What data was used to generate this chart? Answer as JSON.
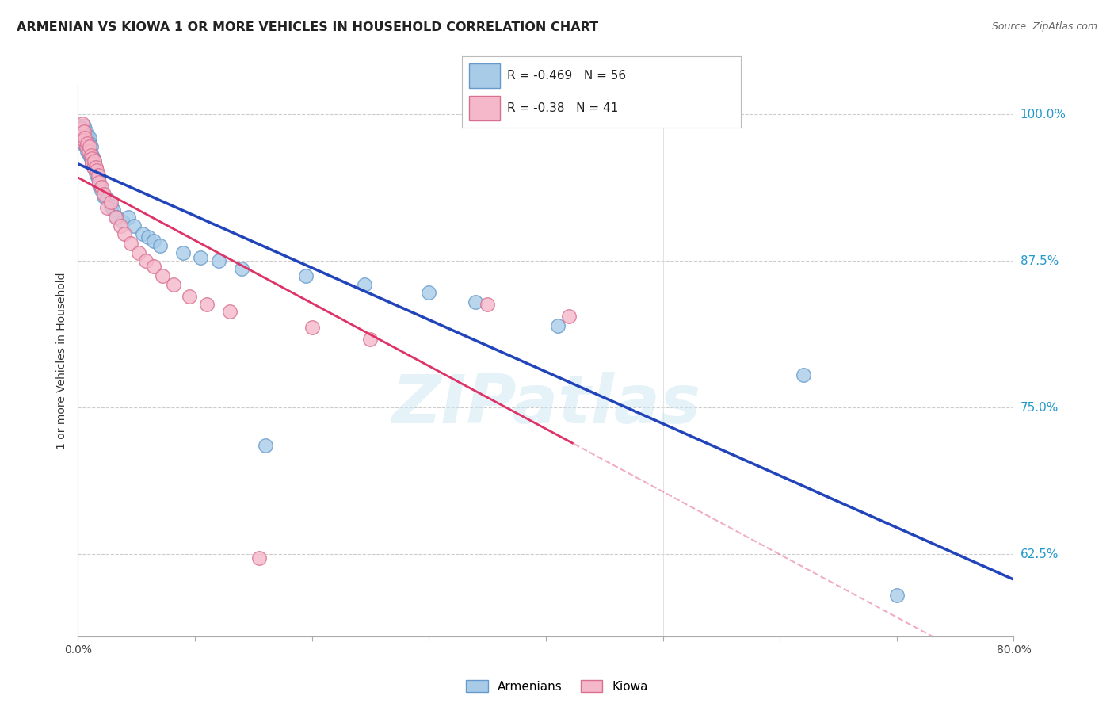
{
  "title": "ARMENIAN VS KIOWA 1 OR MORE VEHICLES IN HOUSEHOLD CORRELATION CHART",
  "source": "Source: ZipAtlas.com",
  "ylabel": "1 or more Vehicles in Household",
  "xlim": [
    0.0,
    0.8
  ],
  "ylim": [
    0.555,
    1.025
  ],
  "yticks": [
    0.625,
    0.75,
    0.875,
    1.0
  ],
  "ytick_labels": [
    "62.5%",
    "75.0%",
    "87.5%",
    "100.0%"
  ],
  "xticks": [
    0.0,
    0.1,
    0.2,
    0.3,
    0.4,
    0.5,
    0.6,
    0.7,
    0.8
  ],
  "xtick_labels": [
    "0.0%",
    "",
    "",
    "",
    "",
    "",
    "",
    "",
    "80.0%"
  ],
  "armenian_color": "#a8cce8",
  "armenian_edge": "#6699cc",
  "kiowa_color": "#f5b8ca",
  "kiowa_edge": "#d87090",
  "trendline_blue": "#2244bb",
  "trendline_pink": "#dd3366",
  "watermark": "ZIPatlas",
  "background_color": "#ffffff",
  "armenian_R": -0.469,
  "armenian_N": 56,
  "kiowa_R": -0.38,
  "kiowa_N": 41,
  "armenian_x": [
    0.002,
    0.003,
    0.004,
    0.004,
    0.005,
    0.005,
    0.005,
    0.006,
    0.006,
    0.007,
    0.007,
    0.007,
    0.008,
    0.008,
    0.008,
    0.009,
    0.009,
    0.01,
    0.01,
    0.01,
    0.011,
    0.011,
    0.012,
    0.012,
    0.013,
    0.013,
    0.014,
    0.015,
    0.016,
    0.017,
    0.018,
    0.02,
    0.022,
    0.025,
    0.028,
    0.03,
    0.033,
    0.038,
    0.043,
    0.048,
    0.055,
    0.06,
    0.065,
    0.07,
    0.09,
    0.105,
    0.12,
    0.14,
    0.16,
    0.195,
    0.245,
    0.3,
    0.34,
    0.41,
    0.62,
    0.7
  ],
  "armenian_y": [
    0.99,
    0.985,
    0.985,
    0.975,
    0.99,
    0.98,
    0.975,
    0.985,
    0.978,
    0.985,
    0.98,
    0.972,
    0.982,
    0.975,
    0.968,
    0.978,
    0.97,
    0.98,
    0.975,
    0.965,
    0.972,
    0.962,
    0.965,
    0.958,
    0.962,
    0.955,
    0.96,
    0.95,
    0.948,
    0.945,
    0.94,
    0.935,
    0.93,
    0.928,
    0.922,
    0.918,
    0.912,
    0.908,
    0.912,
    0.905,
    0.898,
    0.895,
    0.892,
    0.888,
    0.882,
    0.878,
    0.875,
    0.868,
    0.718,
    0.862,
    0.855,
    0.848,
    0.84,
    0.82,
    0.778,
    0.59
  ],
  "kiowa_x": [
    0.001,
    0.002,
    0.003,
    0.004,
    0.005,
    0.005,
    0.006,
    0.007,
    0.008,
    0.009,
    0.01,
    0.011,
    0.012,
    0.012,
    0.013,
    0.014,
    0.015,
    0.016,
    0.017,
    0.018,
    0.02,
    0.022,
    0.025,
    0.028,
    0.032,
    0.036,
    0.04,
    0.045,
    0.052,
    0.058,
    0.065,
    0.072,
    0.082,
    0.095,
    0.11,
    0.13,
    0.155,
    0.2,
    0.25,
    0.35,
    0.42
  ],
  "kiowa_y": [
    0.978,
    0.982,
    0.988,
    0.992,
    0.985,
    0.978,
    0.98,
    0.972,
    0.975,
    0.968,
    0.972,
    0.965,
    0.962,
    0.958,
    0.955,
    0.96,
    0.955,
    0.952,
    0.948,
    0.942,
    0.938,
    0.932,
    0.92,
    0.925,
    0.912,
    0.905,
    0.898,
    0.89,
    0.882,
    0.875,
    0.87,
    0.862,
    0.855,
    0.845,
    0.838,
    0.832,
    0.622,
    0.818,
    0.808,
    0.838,
    0.828
  ]
}
